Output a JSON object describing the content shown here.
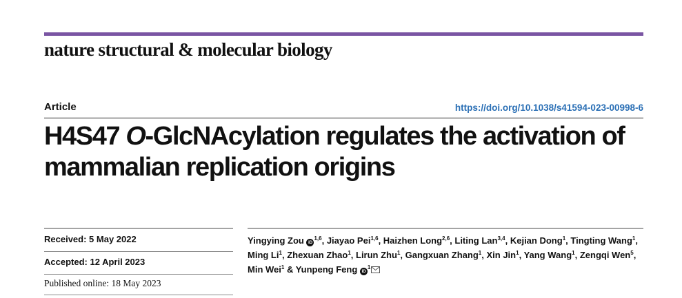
{
  "journal": "nature structural & molecular biology",
  "accent_color": "#7a55a3",
  "link_color": "#2a6fb5",
  "article_type": "Article",
  "doi": "https://doi.org/10.1038/s41594-023-00998-6",
  "title": {
    "part1": "H4S47 ",
    "italic": "O",
    "part2": "-GlcNAcylation regulates the activation of mammalian replication origins"
  },
  "dates": {
    "received_label": "Received:",
    "received_value": "5 May 2022",
    "accepted_label": "Accepted:",
    "accepted_value": "12 April 2023",
    "published_label": "Published online:",
    "published_value": "18 May 2023"
  },
  "authors": [
    {
      "name": "Yingying Zou",
      "aff": "1,6",
      "orcid": true
    },
    {
      "name": "Jiayao Pei",
      "aff": "1,6"
    },
    {
      "name": "Haizhen Long",
      "aff": "2,6"
    },
    {
      "name": "Liting Lan",
      "aff": "3,4"
    },
    {
      "name": "Kejian Dong",
      "aff": "1"
    },
    {
      "name": "Tingting Wang",
      "aff": "1"
    },
    {
      "name": "Ming Li",
      "aff": "1"
    },
    {
      "name": "Zhexuan Zhao",
      "aff": "1"
    },
    {
      "name": "Lirun Zhu",
      "aff": "1"
    },
    {
      "name": "Gangxuan Zhang",
      "aff": "1"
    },
    {
      "name": "Xin Jin",
      "aff": "1"
    },
    {
      "name": "Yang Wang",
      "aff": "1"
    },
    {
      "name": "Zengqi Wen",
      "aff": "5"
    },
    {
      "name": "Min Wei",
      "aff": "1"
    },
    {
      "name": "Yunpeng Feng",
      "aff": "1",
      "orcid": true,
      "corresponding": true
    }
  ],
  "orcid_icon": "orcid-icon",
  "mail_icon": "mail-icon"
}
